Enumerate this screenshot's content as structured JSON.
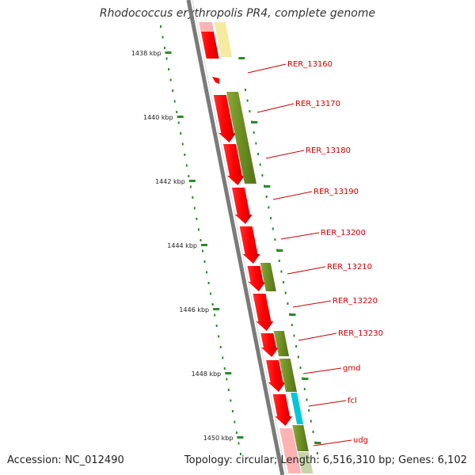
{
  "title": "Rhodococcus erythropolis PR4, complete genome",
  "accession": "Accession: NC_012490",
  "summary": "Topology: circular; Length: 6,516,310 bp; Genes: 6,102",
  "scale_labels": [
    "1438 kbp",
    "1440 kbp",
    "1442 kbp",
    "1444 kbp",
    "1446 kbp",
    "1448 kbp",
    "1450 kbp"
  ],
  "gene_labels": [
    "RER_13160",
    "RER_13170",
    "RER_13180",
    "RER_13190",
    "RER_13200",
    "RER_13210",
    "RER_13220",
    "RER_13230",
    "gmd",
    "fcl",
    "udg"
  ],
  "colors": {
    "backbone": "#7a7a7a",
    "cds_forward": "#ff0000",
    "cds_light": "#ffb3b3",
    "gene_olive": "#6b8e23",
    "gene_pale_yellow": "#f5eaa0",
    "gene_cyan": "#00c8d8",
    "tick": "#2a8a2a",
    "label": "#cc0000"
  }
}
